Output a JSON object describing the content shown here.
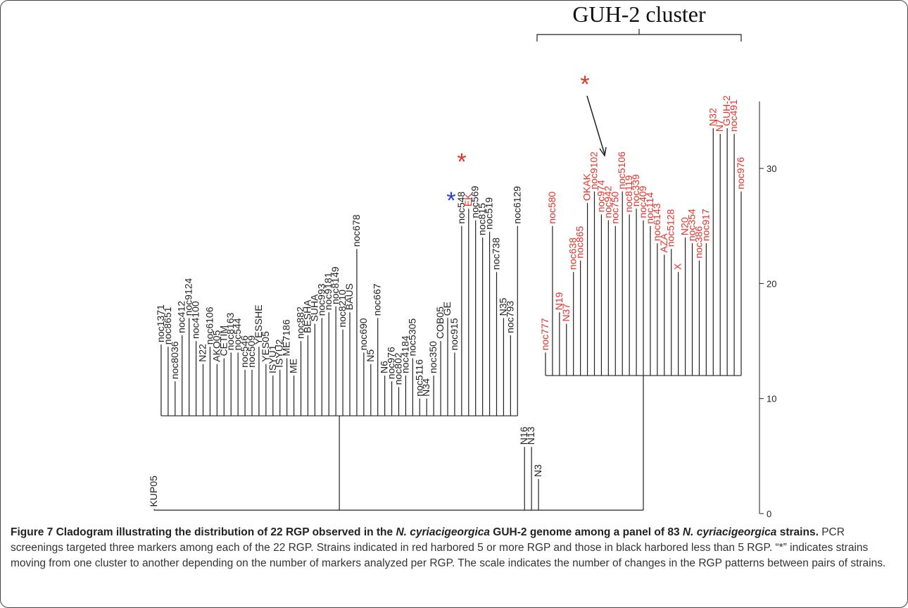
{
  "figure": {
    "cluster_label": "GUH-2 cluster",
    "annotations": [
      {
        "text": "*",
        "color": "#e8312b"
      },
      {
        "text": "*",
        "color": "#2a3fd0"
      },
      {
        "text": "*",
        "color": "#e8312b"
      }
    ],
    "scale_ticks": [
      0,
      10,
      20,
      30
    ],
    "leaves": [
      {
        "label": "KUP05",
        "height": 0.4,
        "color": "#222"
      },
      {
        "label": "noc1371",
        "height": 14.7,
        "color": "#222"
      },
      {
        "label": "noc8651",
        "height": 14.5,
        "color": "#222"
      },
      {
        "label": "noc8036",
        "height": 11.5,
        "color": "#222"
      },
      {
        "label": "noc412",
        "height": 15.5,
        "color": "#222"
      },
      {
        "label": "noc9124",
        "height": 17,
        "color": "#222"
      },
      {
        "label": "noc4100",
        "height": 15,
        "color": "#222"
      },
      {
        "label": "N22",
        "height": 13,
        "color": "#222"
      },
      {
        "label": "noc6106",
        "height": 14.5,
        "color": "#222"
      },
      {
        "label": "AKO05",
        "height": 13,
        "color": "#222"
      },
      {
        "label": "CETIM",
        "height": 13.5,
        "color": "#222"
      },
      {
        "label": "noc8163",
        "height": 14,
        "color": "#222"
      },
      {
        "label": "noc544",
        "height": 14,
        "color": "#222"
      },
      {
        "label": "noc546",
        "height": 12.5,
        "color": "#222"
      },
      {
        "label": "noc509",
        "height": 12.5,
        "color": "#222"
      },
      {
        "label": "YESSHE",
        "height": 14.5,
        "color": "#222"
      },
      {
        "label": "YES05",
        "height": 13,
        "color": "#222"
      },
      {
        "label": "ISYU1",
        "height": 12,
        "color": "#222"
      },
      {
        "label": "ISYU2",
        "height": 12.5,
        "color": "#222"
      },
      {
        "label": "ME7186",
        "height": 13.5,
        "color": "#222"
      },
      {
        "label": "ME",
        "height": 12,
        "color": "#222"
      },
      {
        "label": "noc882",
        "height": 15,
        "color": "#222"
      },
      {
        "label": "BESHA",
        "height": 15.5,
        "color": "#222"
      },
      {
        "label": "SUHA",
        "height": 16.5,
        "color": "#222"
      },
      {
        "label": "noc993",
        "height": 17,
        "color": "#222"
      },
      {
        "label": "noc9181",
        "height": 17.5,
        "color": "#222"
      },
      {
        "label": "noc8149",
        "height": 18,
        "color": "#222"
      },
      {
        "label": "noc8210",
        "height": 16,
        "color": "#222"
      },
      {
        "label": "BAUS",
        "height": 17.5,
        "color": "#222"
      },
      {
        "label": "noc678",
        "height": 23,
        "color": "#222"
      },
      {
        "label": "noc690",
        "height": 14,
        "color": "#222"
      },
      {
        "label": "N5",
        "height": 13,
        "color": "#222"
      },
      {
        "label": "noc667",
        "height": 17,
        "color": "#222"
      },
      {
        "label": "N6",
        "height": 12,
        "color": "#222"
      },
      {
        "label": "noc976",
        "height": 11.5,
        "color": "#222"
      },
      {
        "label": "noc802",
        "height": 11,
        "color": "#222"
      },
      {
        "label": "noc4184",
        "height": 12,
        "color": "#222"
      },
      {
        "label": "noc5305",
        "height": 13.5,
        "color": "#222"
      },
      {
        "label": "noc5116",
        "height": 10,
        "color": "#222"
      },
      {
        "label": "N34",
        "height": 10,
        "color": "#222"
      },
      {
        "label": "noc350",
        "height": 12,
        "color": "#222"
      },
      {
        "label": "COB05",
        "height": 15,
        "color": "#222"
      },
      {
        "label": "GE",
        "height": 17,
        "color": "#222"
      },
      {
        "label": "noc915",
        "height": 14,
        "color": "#222"
      },
      {
        "label": "noc548",
        "height": 25,
        "color": "#222"
      },
      {
        "label": "EK",
        "height": 26.5,
        "color": "#e8312b"
      },
      {
        "label": "noc569",
        "height": 25.5,
        "color": "#222"
      },
      {
        "label": "noc815",
        "height": 24,
        "color": "#222"
      },
      {
        "label": "noc519",
        "height": 24.5,
        "color": "#222"
      },
      {
        "label": "noc738",
        "height": 21,
        "color": "#222"
      },
      {
        "label": "N35",
        "height": 17,
        "color": "#222"
      },
      {
        "label": "noc793",
        "height": 15.5,
        "color": "#222"
      },
      {
        "label": "noc6129",
        "height": 25,
        "color": "#222"
      },
      {
        "label": "N16",
        "height": 5.8,
        "color": "#222"
      },
      {
        "label": "N13",
        "height": 5.8,
        "color": "#222"
      },
      {
        "label": "N3",
        "height": 3,
        "color": "#222"
      },
      {
        "label": "noc777",
        "height": 14,
        "color": "#e8312b"
      },
      {
        "label": "noc580",
        "height": 25,
        "color": "#e8312b"
      },
      {
        "label": "N19",
        "height": 17.5,
        "color": "#e8312b"
      },
      {
        "label": "N37",
        "height": 16.5,
        "color": "#e8312b"
      },
      {
        "label": "noc638",
        "height": 21,
        "color": "#e8312b"
      },
      {
        "label": "noc865",
        "height": 22,
        "color": "#e8312b"
      },
      {
        "label": "OKAK",
        "height": 27,
        "color": "#e8312b"
      },
      {
        "label": "noc9102",
        "height": 28,
        "color": "#e8312b"
      },
      {
        "label": "noc974",
        "height": 26,
        "color": "#e8312b"
      },
      {
        "label": "noc942",
        "height": 25.5,
        "color": "#e8312b"
      },
      {
        "label": "noc750",
        "height": 25,
        "color": "#e8312b"
      },
      {
        "label": "noc5106",
        "height": 28,
        "color": "#e8312b"
      },
      {
        "label": "noc8119",
        "height": 26,
        "color": "#e8312b"
      },
      {
        "label": "noc339",
        "height": 26.5,
        "color": "#e8312b"
      },
      {
        "label": "noc409",
        "height": 25.5,
        "color": "#e8312b"
      },
      {
        "label": "noc114",
        "height": 25,
        "color": "#e8312b"
      },
      {
        "label": "noc6143",
        "height": 23.5,
        "color": "#e8312b"
      },
      {
        "label": "AZA",
        "height": 22.5,
        "color": "#e8312b"
      },
      {
        "label": "noc5128",
        "height": 23,
        "color": "#e8312b"
      },
      {
        "label": "X",
        "height": 21,
        "color": "#e8312b"
      },
      {
        "label": "N20",
        "height": 24,
        "color": "#e8312b"
      },
      {
        "label": "noc354",
        "height": 23.5,
        "color": "#e8312b"
      },
      {
        "label": "noc386",
        "height": 22,
        "color": "#e8312b"
      },
      {
        "label": "noc917",
        "height": 23.5,
        "color": "#e8312b"
      },
      {
        "label": "N32",
        "height": 33.5,
        "color": "#e8312b"
      },
      {
        "label": "N7",
        "height": 33,
        "color": "#e8312b"
      },
      {
        "label": "GUH-2",
        "height": 33.5,
        "color": "#e8312b"
      },
      {
        "label": "noc491",
        "height": 33,
        "color": "#e8312b"
      },
      {
        "label": "noc976",
        "height": 28,
        "color": "#e8312b"
      }
    ]
  },
  "caption": {
    "title": [
      "Figure 7 Cladogram illustrating the distribution of 22 RGP observed in the ",
      "N. cyriacigeorgica",
      " GUH-2 genome among a panel of 83 ",
      "N. cyriacigeorgica",
      " strains."
    ],
    "body": "PCR screenings targeted three markers among each of the 22 RGP. Strains indicated in red harbored 5 or more RGP and those in black harbored less than 5 RGP. “*” indicates strains moving from one cluster to another depending on the number of markers analyzed per RGP. The scale indicates the number of changes in the RGP patterns between pairs of strains."
  }
}
